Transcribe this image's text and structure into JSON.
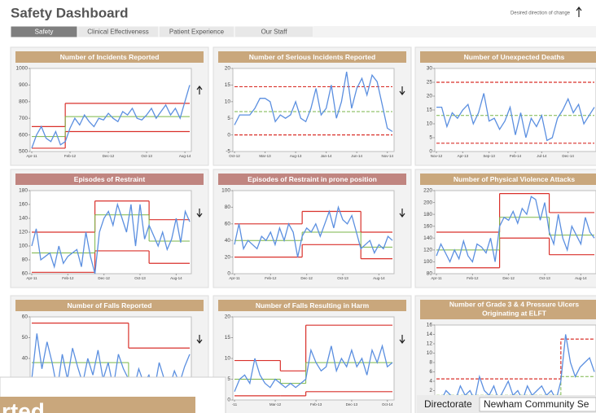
{
  "header": {
    "title": "Safety Dashboard",
    "direction_note": "Desired direction of change"
  },
  "tabs": {
    "items": [
      "Safety",
      "Clinical Effectiveness",
      "Patient Experience",
      "Our Staff"
    ],
    "active": 0
  },
  "chart_data": [
    {
      "type": "line",
      "title": "Number of Incidents Reported",
      "header_color": "#c9a77c",
      "direction": "up",
      "ylim": [
        500,
        1000
      ],
      "yticks": [
        500,
        600,
        700,
        800,
        900,
        1000
      ],
      "xlim": [
        0,
        33
      ],
      "xticks": [
        {
          "value": 0,
          "label": "Apr-11"
        },
        {
          "value": 8,
          "label": "Feb-12"
        },
        {
          "value": 16,
          "label": "Dec-12"
        },
        {
          "value": 24,
          "label": "Oct-13"
        },
        {
          "value": 32,
          "label": "Aug-14"
        }
      ],
      "values": [
        520,
        600,
        650,
        580,
        560,
        620,
        540,
        560,
        640,
        700,
        660,
        720,
        680,
        650,
        700,
        690,
        730,
        700,
        680,
        740,
        720,
        760,
        700,
        690,
        720,
        760,
        700,
        740,
        780,
        720,
        760,
        700,
        800,
        900
      ],
      "limit_style": "solid",
      "phases": [
        {
          "start": 0,
          "mean": 590,
          "upper": 650,
          "lower": 520
        },
        {
          "start": 7,
          "mean": 710,
          "upper": 790,
          "lower": 620
        }
      ]
    },
    {
      "type": "line",
      "title": "Number of Serious Incidents Reported",
      "header_color": "#c9a77c",
      "direction": "down",
      "ylim": [
        -5,
        20
      ],
      "yticks": [
        -5,
        0,
        5,
        10,
        15,
        20
      ],
      "xlim": [
        0,
        31
      ],
      "xticks": [
        {
          "value": 0,
          "label": "Oct-12"
        },
        {
          "value": 6,
          "label": "Mar-13"
        },
        {
          "value": 12,
          "label": "Aug-13"
        },
        {
          "value": 18,
          "label": "Jan-14"
        },
        {
          "value": 24,
          "label": "Jun-14"
        },
        {
          "value": 30,
          "label": "Nov-14"
        }
      ],
      "values": [
        3,
        6,
        6,
        6,
        8,
        11,
        11,
        10,
        4,
        6,
        5,
        6,
        10,
        5,
        4,
        8,
        14,
        6,
        8,
        15,
        5,
        10,
        19,
        8,
        14,
        17,
        12,
        18,
        16,
        9,
        2,
        1
      ],
      "limit_style": "dashed",
      "phases": [
        {
          "start": 0,
          "mean": 7,
          "upper": 14.5,
          "lower": 0
        }
      ]
    },
    {
      "type": "line",
      "title": "Number of Unexpected Deaths",
      "header_color": "#c9a77c",
      "ylim": [
        0,
        30
      ],
      "yticks": [
        0,
        5,
        10,
        15,
        20,
        25,
        30
      ],
      "xlim": [
        0,
        30
      ],
      "xticks": [
        {
          "value": 0,
          "label": "Nov-12"
        },
        {
          "value": 5,
          "label": "Apr-13"
        },
        {
          "value": 10,
          "label": "Sep-13"
        },
        {
          "value": 15,
          "label": "Feb-14"
        },
        {
          "value": 20,
          "label": "Jul-14"
        },
        {
          "value": 25,
          "label": "Dec-14"
        }
      ],
      "values": [
        16,
        16,
        9,
        14,
        12,
        15,
        17,
        10,
        14,
        21,
        11,
        12,
        8,
        11,
        16,
        6,
        14,
        5,
        12,
        9,
        13,
        4,
        5,
        12,
        15,
        19,
        14,
        17,
        10,
        13,
        16
      ],
      "limit_style": "dashed",
      "phases": [
        {
          "start": 0,
          "mean": 13,
          "upper": 25,
          "lower": 3
        }
      ]
    },
    {
      "type": "line",
      "title": "Episodes of Restraint",
      "header_color": "#c08580",
      "direction": "down",
      "ylim": [
        60,
        180
      ],
      "yticks": [
        60,
        80,
        100,
        120,
        140,
        160,
        180
      ],
      "xlim": [
        0,
        35
      ],
      "xticks": [
        {
          "value": 0,
          "label": "Apr-11"
        },
        {
          "value": 8,
          "label": "Feb-12"
        },
        {
          "value": 16,
          "label": "Dec-12"
        },
        {
          "value": 24,
          "label": "Oct-13"
        },
        {
          "value": 32,
          "label": "Aug-14"
        }
      ],
      "values": [
        100,
        125,
        80,
        85,
        90,
        70,
        100,
        75,
        85,
        90,
        95,
        70,
        120,
        85,
        60,
        120,
        140,
        150,
        130,
        160,
        140,
        120,
        160,
        100,
        160,
        110,
        130,
        115,
        100,
        120,
        95,
        110,
        140,
        105,
        150,
        135
      ],
      "limit_style": "solid",
      "phases": [
        {
          "start": 0,
          "mean": 90,
          "upper": 120,
          "lower": 62
        },
        {
          "start": 14,
          "mean": 145,
          "upper": 165,
          "lower": 93
        },
        {
          "start": 26,
          "mean": 107,
          "upper": 138,
          "lower": 75
        }
      ]
    },
    {
      "type": "line",
      "title": "Episodes of Restraint in prone position",
      "header_color": "#c08580",
      "direction": "down",
      "ylim": [
        0,
        100
      ],
      "yticks": [
        0,
        20,
        40,
        60,
        80,
        100
      ],
      "xlim": [
        0,
        35
      ],
      "xticks": [
        {
          "value": 0,
          "label": "Apr-11"
        },
        {
          "value": 8,
          "label": "Feb-12"
        },
        {
          "value": 16,
          "label": "Dec-12"
        },
        {
          "value": 24,
          "label": "Oct-13"
        },
        {
          "value": 32,
          "label": "Aug-14"
        }
      ],
      "values": [
        35,
        60,
        30,
        40,
        35,
        30,
        45,
        40,
        50,
        35,
        55,
        40,
        60,
        50,
        20,
        45,
        55,
        50,
        60,
        45,
        60,
        75,
        55,
        80,
        65,
        60,
        70,
        50,
        30,
        35,
        40,
        25,
        35,
        30,
        45,
        40
      ],
      "limit_style": "solid",
      "phases": [
        {
          "start": 0,
          "mean": 40,
          "upper": 60,
          "lower": 20
        },
        {
          "start": 15,
          "mean": 50,
          "upper": 75,
          "lower": 35
        },
        {
          "start": 28,
          "mean": 32,
          "upper": 50,
          "lower": 18
        }
      ]
    },
    {
      "type": "line",
      "title": "Number of Physical Violence Attacks",
      "header_color": "#c9a77c",
      "ylim": [
        80,
        220
      ],
      "yticks": [
        80,
        100,
        120,
        140,
        160,
        180,
        200,
        220
      ],
      "xlim": [
        0,
        35
      ],
      "xticks": [
        {
          "value": 0,
          "label": "Apr-11"
        },
        {
          "value": 8,
          "label": "Feb-12"
        },
        {
          "value": 16,
          "label": "Dec-12"
        },
        {
          "value": 24,
          "label": "Oct-13"
        },
        {
          "value": 32,
          "label": "Aug-14"
        }
      ],
      "values": [
        110,
        130,
        115,
        100,
        120,
        105,
        135,
        110,
        100,
        130,
        125,
        115,
        140,
        100,
        160,
        175,
        170,
        185,
        165,
        190,
        180,
        210,
        205,
        170,
        200,
        150,
        130,
        180,
        140,
        120,
        160,
        145,
        130,
        175,
        150,
        140
      ],
      "limit_style": "solid",
      "phases": [
        {
          "start": 0,
          "mean": 120,
          "upper": 150,
          "lower": 90
        },
        {
          "start": 14,
          "mean": 175,
          "upper": 215,
          "lower": 140
        },
        {
          "start": 25,
          "mean": 145,
          "upper": 183,
          "lower": 112
        }
      ]
    },
    {
      "type": "line",
      "title": "Number of Falls Reported",
      "header_color": "#c9a77c",
      "direction": "down",
      "ylim": [
        20,
        60
      ],
      "yticks": [
        20,
        30,
        40,
        50,
        60
      ],
      "xlim": [
        0,
        31
      ],
      "xticks": [],
      "values": [
        30,
        52,
        35,
        48,
        38,
        25,
        42,
        30,
        45,
        36,
        28,
        40,
        32,
        44,
        30,
        38,
        26,
        42,
        35,
        30,
        25,
        35,
        28,
        32,
        24,
        38,
        30,
        26,
        34,
        28,
        36,
        42
      ],
      "limit_style": "solid",
      "phases": [
        {
          "start": 0,
          "mean": 38,
          "upper": 57,
          "lower": 21
        },
        {
          "start": 19,
          "mean": 30,
          "upper": 45,
          "lower": 15
        }
      ]
    },
    {
      "type": "line",
      "title": "Number of Falls Resulting in Harm",
      "header_color": "#c9a77c",
      "direction": "down",
      "ylim": [
        0,
        20
      ],
      "yticks": [
        0,
        5,
        10,
        15,
        20
      ],
      "xlim": [
        0,
        31
      ],
      "xticks": [
        {
          "value": 0,
          "label": "-11"
        },
        {
          "value": 8,
          "label": "Mar-12"
        },
        {
          "value": 16,
          "label": "Feb-13"
        },
        {
          "value": 23,
          "label": "Dec-13"
        },
        {
          "value": 30,
          "label": "Oct-14"
        }
      ],
      "values": [
        2,
        5,
        6,
        4,
        10,
        6,
        4,
        3,
        5,
        4,
        3,
        4,
        3,
        4,
        5,
        12,
        9,
        7,
        8,
        13,
        7,
        10,
        8,
        12,
        8,
        10,
        6,
        12,
        9,
        13,
        8,
        9
      ],
      "limit_style": "solid",
      "phases": [
        {
          "start": 0,
          "mean": 5,
          "upper": 9.5,
          "lower": 1
        },
        {
          "start": 9,
          "mean": 4,
          "upper": 7,
          "lower": 1
        },
        {
          "start": 14,
          "mean": 9,
          "upper": 18,
          "lower": 2
        }
      ]
    },
    {
      "type": "line",
      "title": [
        "Number of Grade 3 & 4 Pressure Ulcers",
        "Originating at ELFT"
      ],
      "header_color": "#c9a77c",
      "ylim": [
        0,
        16
      ],
      "yticks": [
        0,
        2,
        4,
        6,
        8,
        10,
        12,
        14,
        16
      ],
      "xlim": [
        0,
        33
      ],
      "xticks": [],
      "values": [
        1,
        0,
        2,
        1,
        0,
        3,
        1,
        2,
        0,
        5,
        2,
        1,
        3,
        0,
        2,
        4,
        1,
        2,
        0,
        3,
        1,
        2,
        3,
        1,
        2,
        0,
        4,
        14,
        8,
        5,
        7,
        8,
        9,
        6
      ],
      "limit_style": "dashed",
      "phases": [
        {
          "start": 0,
          "mean": 1,
          "upper": 4.5,
          "lower": 0
        },
        {
          "start": 26,
          "mean": 5,
          "upper": 13,
          "lower": 0
        }
      ]
    }
  ],
  "popup": {
    "text": "rted"
  },
  "filter": {
    "label": "Directorate",
    "value": "Newham Community Se"
  },
  "colors": {
    "values": "#5b8fe0",
    "mean": "#7ab648",
    "limits": "#d9312b"
  }
}
